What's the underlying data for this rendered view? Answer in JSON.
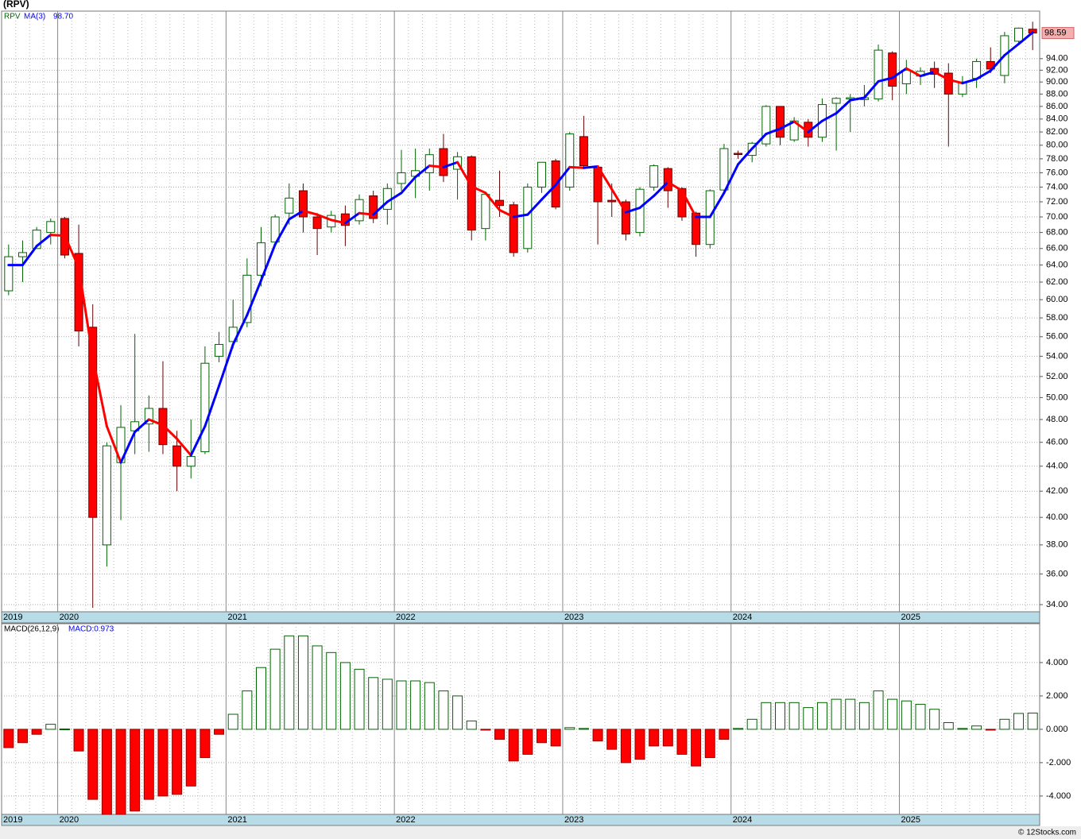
{
  "chart_data": [
    {
      "type": "candlestick",
      "title": "(RPV)",
      "name": "RPV",
      "log_scale": true,
      "grid": true,
      "up_color": "#006400",
      "down_color": "#ff0000",
      "categories": [
        "2019",
        null,
        null,
        null,
        "2020",
        null,
        null,
        null,
        null,
        null,
        null,
        null,
        null,
        null,
        null,
        null,
        "2021",
        null,
        null,
        null,
        null,
        null,
        null,
        null,
        null,
        null,
        null,
        null,
        "2022",
        null,
        null,
        null,
        null,
        null,
        null,
        null,
        null,
        null,
        null,
        null,
        "2023",
        null,
        null,
        null,
        null,
        null,
        null,
        null,
        null,
        null,
        null,
        null,
        "2024",
        null,
        null,
        null,
        null,
        null,
        null,
        null,
        null,
        null,
        null,
        null,
        "2025",
        null,
        null,
        null,
        null,
        null,
        null,
        null,
        null,
        null
      ],
      "open": [
        61,
        65,
        66,
        68,
        69.8,
        65.4,
        57,
        38,
        44.3,
        47,
        47.6,
        49,
        45.7,
        44,
        45.2,
        54,
        55.5,
        57.5,
        62.8,
        66.8,
        70.5,
        73.5,
        70,
        68.7,
        70.4,
        69.5,
        72.8,
        71,
        74.5,
        75.5,
        76,
        79.5,
        76.5,
        78.3,
        68.5,
        72.2,
        71.6,
        66,
        74,
        77.7,
        74,
        81.3,
        76.8,
        72.2,
        72,
        68,
        74,
        76.6,
        73.8,
        70.5,
        66.5,
        73.6,
        78.8,
        78.5,
        80.2,
        86,
        80.8,
        83.5,
        81.2,
        86.5,
        87.2,
        87.1,
        87.2,
        95,
        89.7,
        91,
        92.3,
        91.5,
        88,
        90.6,
        93.5,
        91.1,
        97.1,
        99.3
      ],
      "high": [
        66.5,
        67,
        68.7,
        69.8,
        70,
        69,
        59.5,
        46,
        49.3,
        56.3,
        50.2,
        53.5,
        47,
        48,
        55,
        56.5,
        60,
        64.8,
        68.7,
        70.3,
        74.5,
        74.5,
        70.5,
        70.8,
        71.5,
        73,
        73.5,
        74.5,
        79.3,
        79.5,
        79.5,
        81.7,
        79,
        78.5,
        73.3,
        76.3,
        72,
        74.5,
        77.5,
        78,
        82,
        84.5,
        77,
        74.5,
        72.3,
        74,
        77.2,
        76.8,
        74,
        70.7,
        73.7,
        80.2,
        79.2,
        80.5,
        86.2,
        86,
        84.3,
        84,
        87.3,
        87.5,
        88,
        89.5,
        96.5,
        95.3,
        93.8,
        92.5,
        93.5,
        93.2,
        91,
        94,
        96,
        98.8,
        99.6,
        100.7
      ],
      "low": [
        60.5,
        62,
        66,
        66.5,
        64.8,
        55,
        33.8,
        36.5,
        39.8,
        45,
        45.2,
        45,
        42,
        43,
        45,
        53.4,
        54.8,
        57,
        61.5,
        66.3,
        69,
        68,
        65.2,
        68,
        66.3,
        69,
        69.2,
        69,
        73.5,
        72.5,
        73.5,
        74.7,
        72.3,
        67,
        67,
        70,
        65,
        65.5,
        73.2,
        71,
        73.5,
        76.7,
        66.5,
        70,
        67,
        67.5,
        73.5,
        71.2,
        69.5,
        65,
        66,
        73,
        78,
        77.5,
        79.8,
        80,
        80.5,
        79.8,
        80.5,
        79.2,
        82,
        86,
        86.8,
        87,
        88,
        89.5,
        89,
        79.8,
        87.5,
        89,
        91.5,
        89.8,
        96.8,
        95.5
      ],
      "close": [
        65,
        65.5,
        68.3,
        69.4,
        65.2,
        56.6,
        40,
        45.7,
        47.3,
        47.8,
        49,
        45.8,
        44,
        44.8,
        53.3,
        55.2,
        57,
        62.8,
        66.7,
        70,
        72.5,
        70,
        68.5,
        70.2,
        68.9,
        72.3,
        69.8,
        73.8,
        76,
        76.3,
        78.6,
        75.6,
        78.3,
        68.3,
        73,
        71.5,
        65.5,
        74,
        77.5,
        71.3,
        81.7,
        77,
        72,
        72,
        67.8,
        73.7,
        77,
        73.5,
        70,
        66.5,
        73.5,
        79.5,
        78.7,
        80.3,
        86,
        81.2,
        83.7,
        81.2,
        86.3,
        87.3,
        87.4,
        87.4,
        95.5,
        89.3,
        92,
        91.8,
        91.3,
        88,
        90,
        93.5,
        92.2,
        98.1,
        99.5,
        98.59
      ],
      "overlay": {
        "name": "MA(3)",
        "color": "#0000ff",
        "falling_color": "#ff0000",
        "legend_value": "98.70",
        "values": [
          64,
          64,
          66.3,
          67.7,
          67.6,
          63.7,
          53.9,
          47.4,
          44.3,
          46.9,
          48,
          47.5,
          46.3,
          44.9,
          47.4,
          51.1,
          55.2,
          58.3,
          62.2,
          66.5,
          69.7,
          70.8,
          70.3,
          69.6,
          69.2,
          70.5,
          70.3,
          72,
          73.2,
          75.4,
          77,
          76.8,
          77.5,
          74.1,
          73.2,
          70.9,
          70,
          70.3,
          72.3,
          74.3,
          76.8,
          76.7,
          76.9,
          73.7,
          70.6,
          71.2,
          72.8,
          74.7,
          73.5,
          70,
          70,
          73.2,
          77.2,
          79.5,
          81.7,
          82.5,
          83.6,
          82,
          83.7,
          84.9,
          87,
          87.4,
          90.1,
          90.7,
          92.3,
          91,
          91.7,
          90.4,
          89.8,
          90.5,
          91.9,
          94.6,
          96.6,
          98.7
        ]
      },
      "ylim": [
        33.55,
        102.7
      ],
      "yticks": [
        {
          "value": 34,
          "label": "34.00"
        },
        {
          "value": 36,
          "label": "36.00"
        },
        {
          "value": 38,
          "label": "38.00"
        },
        {
          "value": 40,
          "label": "40.00"
        },
        {
          "value": 42,
          "label": "42.00"
        },
        {
          "value": 44,
          "label": "44.00"
        },
        {
          "value": 46,
          "label": "46.00"
        },
        {
          "value": 48,
          "label": "48.00"
        },
        {
          "value": 50,
          "label": "50.00"
        },
        {
          "value": 52,
          "label": "52.00"
        },
        {
          "value": 54,
          "label": "54.00"
        },
        {
          "value": 56,
          "label": "56.00"
        },
        {
          "value": 58,
          "label": "58.00"
        },
        {
          "value": 60,
          "label": "60.00"
        },
        {
          "value": 62,
          "label": "62.00"
        },
        {
          "value": 64,
          "label": "64.00"
        },
        {
          "value": 66,
          "label": "66.00"
        },
        {
          "value": 68,
          "label": "68.00"
        },
        {
          "value": 70,
          "label": "70.00"
        },
        {
          "value": 72,
          "label": "72.00"
        },
        {
          "value": 74,
          "label": "74.00"
        },
        {
          "value": 76,
          "label": "76.00"
        },
        {
          "value": 78,
          "label": "78.00"
        },
        {
          "value": 80,
          "label": "80.00"
        },
        {
          "value": 82,
          "label": "82.00"
        },
        {
          "value": 84,
          "label": "84.00"
        },
        {
          "value": 86,
          "label": "86.00"
        },
        {
          "value": 88,
          "label": "88.00"
        },
        {
          "value": 90,
          "label": "90.00"
        },
        {
          "value": 92,
          "label": "92.00"
        },
        {
          "value": 94,
          "label": "94.00"
        }
      ]
    },
    {
      "type": "bar",
      "name": "MACD(26,12,9)",
      "legend_label": "MACD:0.973",
      "grid": true,
      "color": "#006400",
      "negative_color": "#ff0000",
      "categories": [
        "2019",
        null,
        null,
        null,
        "2020",
        null,
        null,
        null,
        null,
        null,
        null,
        null,
        null,
        null,
        null,
        null,
        "2021",
        null,
        null,
        null,
        null,
        null,
        null,
        null,
        null,
        null,
        null,
        null,
        "2022",
        null,
        null,
        null,
        null,
        null,
        null,
        null,
        null,
        null,
        null,
        null,
        "2023",
        null,
        null,
        null,
        null,
        null,
        null,
        null,
        null,
        null,
        null,
        null,
        "2024",
        null,
        null,
        null,
        null,
        null,
        null,
        null,
        null,
        null,
        null,
        null,
        "2025",
        null,
        null,
        null,
        null,
        null,
        null,
        null,
        null,
        null
      ],
      "values": [
        -1.1,
        -0.8,
        -0.3,
        0.3,
        0.02,
        -1.3,
        -4.2,
        -5.1,
        -5.1,
        -4.9,
        -4.2,
        -4.0,
        -3.9,
        -3.4,
        -1.7,
        -0.3,
        0.9,
        2.3,
        3.7,
        4.8,
        5.6,
        5.6,
        5.0,
        4.6,
        4.0,
        3.6,
        3.1,
        3.0,
        2.9,
        2.9,
        2.8,
        2.3,
        2.0,
        0.5,
        -0.05,
        -0.6,
        -1.9,
        -1.5,
        -0.8,
        -1.0,
        0.1,
        0.05,
        -0.7,
        -1.2,
        -2.0,
        -1.8,
        -1.0,
        -1.0,
        -1.5,
        -2.2,
        -1.7,
        -0.6,
        0.05,
        0.6,
        1.6,
        1.6,
        1.6,
        1.3,
        1.6,
        1.8,
        1.8,
        1.6,
        2.3,
        1.8,
        1.7,
        1.5,
        1.2,
        0.4,
        0.05,
        0.2,
        -0.05,
        0.6,
        0.95,
        0.973
      ],
      "ylim": [
        -5.1,
        6.33
      ],
      "yticks": [
        {
          "value": -4,
          "label": "-4.000"
        },
        {
          "value": -2,
          "label": "-2.000"
        },
        {
          "value": 0,
          "label": "0.000"
        },
        {
          "value": 2,
          "label": "2.000"
        },
        {
          "value": 4,
          "label": "4.000"
        }
      ]
    }
  ],
  "footer": "© 12Stocks.com"
}
